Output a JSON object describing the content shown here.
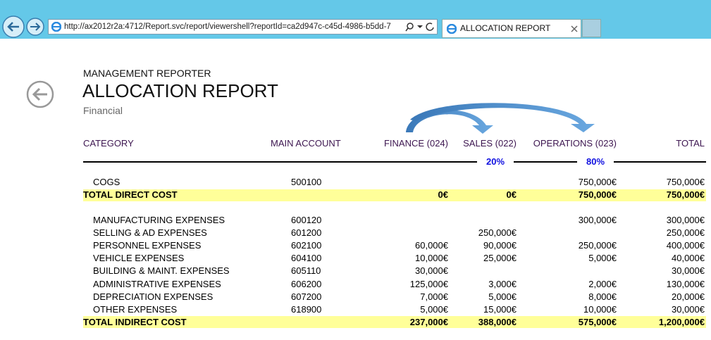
{
  "browser": {
    "url": "http://ax2012r2a:4712/Report.svc/report/viewershell?reportId=ca2d947c-c45d-4986-b5dd-7",
    "tab_title": "ALLOCATION REPORT"
  },
  "header": {
    "app": "MANAGEMENT REPORTER",
    "title": "ALLOCATION REPORT",
    "subtitle": "Financial"
  },
  "table": {
    "columns": [
      "CATEGORY",
      "MAIN ACCOUNT",
      "FINANCE (024)",
      "SALES (022)",
      "OPERATIONS (023)",
      "TOTAL"
    ],
    "allocations": [
      "20%",
      "80%"
    ],
    "sections": [
      {
        "rows": [
          [
            "COGS",
            "500100",
            null,
            null,
            "750,000€",
            "750,000€"
          ]
        ],
        "total": [
          "TOTAL DIRECT COST",
          null,
          "0€",
          "0€",
          "750,000€",
          "750,000€"
        ]
      },
      {
        "rows": [
          [
            "MANUFACTURING EXPENSES",
            "600120",
            null,
            null,
            "300,000€",
            "300,000€"
          ],
          [
            "SELLING & AD EXPENSES",
            "601200",
            null,
            "250,000€",
            null,
            "250,000€"
          ],
          [
            "PERSONNEL EXPENSES",
            "602100",
            "60,000€",
            "90,000€",
            "250,000€",
            "400,000€"
          ],
          [
            "VEHICLE EXPENSES",
            "604100",
            "10,000€",
            "25,000€",
            "5,000€",
            "40,000€"
          ],
          [
            "BUILDING & MAINT. EXPENSES",
            "605110",
            "30,000€",
            null,
            null,
            "30,000€"
          ],
          [
            "ADMINISTRATIVE EXPENSES",
            "606200",
            "125,000€",
            "3,000€",
            "2,000€",
            "130,000€"
          ],
          [
            "DEPRECIATION EXPENSES",
            "607200",
            "7,000€",
            "5,000€",
            "8,000€",
            "20,000€"
          ],
          [
            "OTHER EXPENSES",
            "618900",
            "5,000€",
            "15,000€",
            "10,000€",
            "30,000€"
          ]
        ],
        "total": [
          "TOTAL INDIRECT COST",
          null,
          "237,000€",
          "388,000€",
          "575,000€",
          "1,200,000€"
        ]
      }
    ]
  }
}
